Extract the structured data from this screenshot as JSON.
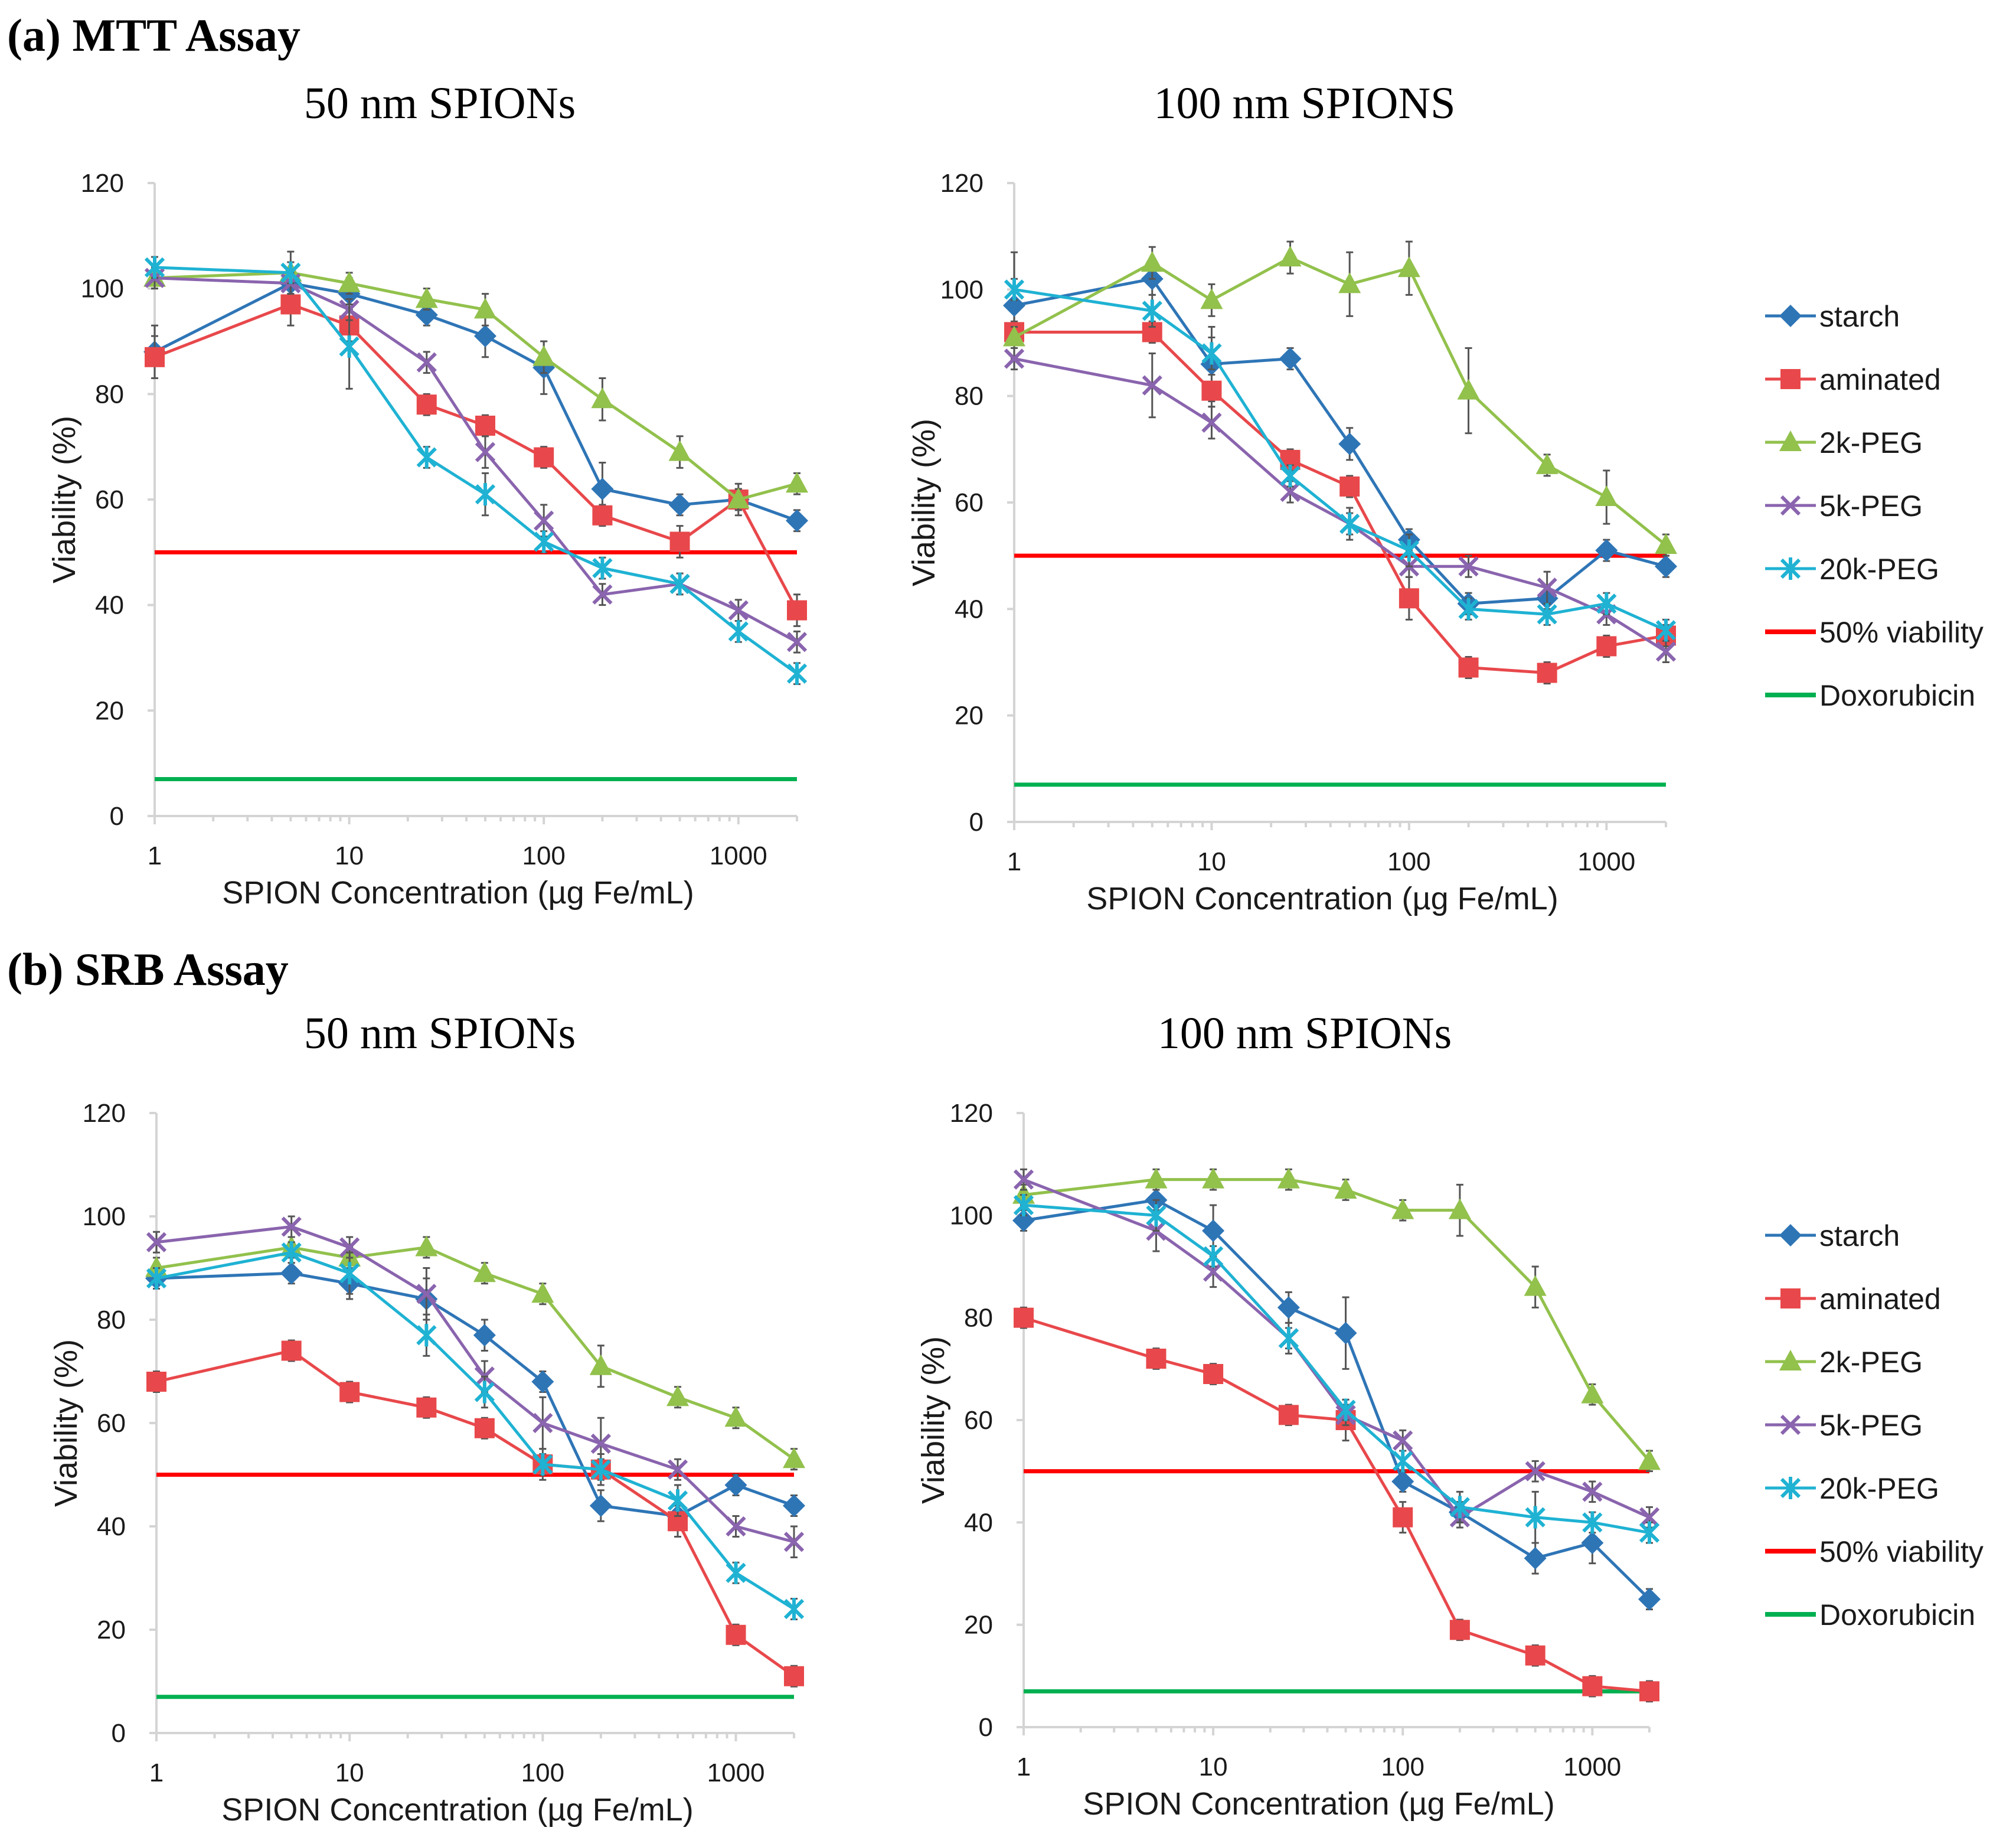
{
  "sections": [
    {
      "label": "(a) MTT Assay"
    },
    {
      "label": "(b) SRB Assay"
    }
  ],
  "colors": {
    "starch": "#2e75b6",
    "aminated": "#e8484b",
    "2k-PEG": "#92c14c",
    "5k-PEG": "#8a64ae",
    "20k-PEG": "#1fb2d3",
    "50% viability": "#ff0000",
    "Doxorubicin": "#00b050",
    "errorbar": "#555555"
  },
  "chart_data": [
    {
      "type": "line",
      "section": 0,
      "title": "50 nm SPIONs",
      "xlabel": "SPION Concentration (µg Fe/mL)",
      "ylabel": "Viability (%)",
      "xscale": "log",
      "xlim": [
        1,
        2000
      ],
      "ylim": [
        0,
        120
      ],
      "xticks": [
        1,
        10,
        100,
        1000
      ],
      "yticks": [
        0,
        20,
        40,
        60,
        80,
        100,
        120
      ],
      "x": [
        1,
        5,
        10,
        25,
        50,
        100,
        200,
        500,
        1000,
        2000
      ],
      "series": [
        {
          "name": "starch",
          "marker": "diamond",
          "values": [
            88,
            101,
            99,
            95,
            91,
            85,
            62,
            59,
            60,
            56
          ],
          "errors": [
            5,
            4,
            3,
            2,
            4,
            5,
            5,
            2,
            2,
            2
          ]
        },
        {
          "name": "aminated",
          "marker": "square",
          "values": [
            87,
            97,
            93,
            78,
            74,
            68,
            57,
            52,
            60,
            39
          ],
          "errors": [
            4,
            4,
            3,
            2,
            2,
            2,
            2,
            3,
            3,
            3
          ]
        },
        {
          "name": "2k-PEG",
          "marker": "triangle",
          "values": [
            102,
            103,
            101,
            98,
            96,
            87,
            79,
            69,
            60,
            63
          ],
          "errors": [
            2,
            4,
            2,
            2,
            3,
            3,
            4,
            3,
            2,
            2
          ]
        },
        {
          "name": "5k-PEG",
          "marker": "x",
          "values": [
            102,
            101,
            96,
            86,
            69,
            56,
            42,
            44,
            39,
            33
          ],
          "errors": [
            2,
            2,
            2,
            2,
            3,
            3,
            2,
            2,
            2,
            2
          ]
        },
        {
          "name": "20k-PEG",
          "marker": "star",
          "values": [
            104,
            103,
            89,
            68,
            61,
            52,
            47,
            44,
            35,
            27
          ],
          "errors": [
            2,
            2,
            8,
            2,
            4,
            2,
            2,
            2,
            2,
            2
          ]
        }
      ],
      "reference_lines": [
        {
          "name": "50% viability",
          "value": 50
        },
        {
          "name": "Doxorubicin",
          "value": 7
        }
      ],
      "legend": null
    },
    {
      "type": "line",
      "section": 0,
      "title": "100 nm SPIONS",
      "xlabel": "SPION Concentration (µg Fe/mL)",
      "ylabel": "Viability (%)",
      "xscale": "log",
      "xlim": [
        1,
        2000
      ],
      "ylim": [
        0,
        120
      ],
      "xticks": [
        1,
        10,
        100,
        1000
      ],
      "yticks": [
        0,
        20,
        40,
        60,
        80,
        100,
        120
      ],
      "x": [
        1,
        5,
        10,
        25,
        50,
        100,
        200,
        500,
        1000,
        2000
      ],
      "series": [
        {
          "name": "starch",
          "marker": "diamond",
          "values": [
            97,
            102,
            86,
            87,
            71,
            53,
            41,
            42,
            51,
            48
          ],
          "errors": [
            10,
            3,
            7,
            2,
            3,
            2,
            2,
            2,
            2,
            2
          ]
        },
        {
          "name": "aminated",
          "marker": "square",
          "values": [
            92,
            92,
            81,
            68,
            63,
            42,
            29,
            28,
            33,
            35
          ],
          "errors": [
            2,
            2,
            3,
            2,
            2,
            4,
            2,
            2,
            2,
            2
          ]
        },
        {
          "name": "2k-PEG",
          "marker": "triangle",
          "values": [
            91,
            105,
            98,
            106,
            101,
            104,
            81,
            67,
            61,
            52
          ],
          "errors": [
            2,
            3,
            3,
            3,
            6,
            5,
            8,
            2,
            5,
            2
          ]
        },
        {
          "name": "5k-PEG",
          "marker": "x",
          "values": [
            87,
            82,
            75,
            62,
            56,
            48,
            48,
            44,
            39,
            32
          ],
          "errors": [
            2,
            6,
            3,
            2,
            2,
            2,
            2,
            3,
            2,
            2
          ]
        },
        {
          "name": "20k-PEG",
          "marker": "star",
          "values": [
            100,
            96,
            88,
            65,
            56,
            51,
            40,
            39,
            41,
            36
          ],
          "errors": [
            2,
            3,
            3,
            2,
            3,
            3,
            2,
            2,
            2,
            2
          ]
        }
      ],
      "reference_lines": [
        {
          "name": "50% viability",
          "value": 50
        },
        {
          "name": "Doxorubicin",
          "value": 7
        }
      ],
      "legend": [
        "starch",
        "aminated",
        "2k-PEG",
        "5k-PEG",
        "20k-PEG",
        "50% viability",
        "Doxorubicin"
      ]
    },
    {
      "type": "line",
      "section": 1,
      "title": "50 nm SPIONs",
      "xlabel": "SPION Concentration (µg Fe/mL)",
      "ylabel": "Viability (%)",
      "xscale": "log",
      "xlim": [
        1,
        2000
      ],
      "ylim": [
        0,
        120
      ],
      "xticks": [
        1,
        10,
        100,
        1000
      ],
      "yticks": [
        0,
        20,
        40,
        60,
        80,
        100,
        120
      ],
      "x": [
        1,
        5,
        10,
        25,
        50,
        100,
        200,
        500,
        1000,
        2000
      ],
      "series": [
        {
          "name": "starch",
          "marker": "diamond",
          "values": [
            88,
            89,
            87,
            84,
            77,
            68,
            44,
            42,
            48,
            44
          ],
          "errors": [
            2,
            2,
            3,
            4,
            3,
            2,
            3,
            2,
            2,
            2
          ]
        },
        {
          "name": "aminated",
          "marker": "square",
          "values": [
            68,
            74,
            66,
            63,
            59,
            52,
            51,
            41,
            19,
            11
          ],
          "errors": [
            2,
            2,
            2,
            2,
            2,
            2,
            2,
            3,
            2,
            2
          ]
        },
        {
          "name": "2k-PEG",
          "marker": "triangle",
          "values": [
            90,
            94,
            92,
            94,
            89,
            85,
            71,
            65,
            61,
            53
          ],
          "errors": [
            2,
            2,
            2,
            2,
            2,
            2,
            4,
            2,
            2,
            2
          ]
        },
        {
          "name": "5k-PEG",
          "marker": "x",
          "values": [
            95,
            98,
            94,
            85,
            69,
            60,
            56,
            51,
            40,
            37
          ],
          "errors": [
            2,
            2,
            2,
            5,
            3,
            5,
            5,
            2,
            2,
            3
          ]
        },
        {
          "name": "20k-PEG",
          "marker": "star",
          "values": [
            88,
            93,
            89,
            77,
            66,
            52,
            51,
            45,
            31,
            24
          ],
          "errors": [
            2,
            2,
            4,
            4,
            3,
            3,
            3,
            3,
            2,
            2
          ]
        }
      ],
      "reference_lines": [
        {
          "name": "50% viability",
          "value": 50
        },
        {
          "name": "Doxorubicin",
          "value": 7
        }
      ],
      "legend": null
    },
    {
      "type": "line",
      "section": 1,
      "title": "100 nm SPIONs",
      "xlabel": "SPION Concentration (µg Fe/mL)",
      "ylabel": "Viability (%)",
      "xscale": "log",
      "xlim": [
        1,
        2000
      ],
      "ylim": [
        0,
        120
      ],
      "xticks": [
        1,
        10,
        100,
        1000
      ],
      "yticks": [
        0,
        20,
        40,
        60,
        80,
        100,
        120
      ],
      "x": [
        1,
        5,
        10,
        25,
        50,
        100,
        200,
        500,
        1000,
        2000
      ],
      "series": [
        {
          "name": "starch",
          "marker": "diamond",
          "values": [
            99,
            103,
            97,
            82,
            77,
            48,
            42,
            33,
            36,
            25
          ],
          "errors": [
            2,
            2,
            5,
            3,
            7,
            2,
            2,
            3,
            4,
            2
          ]
        },
        {
          "name": "aminated",
          "marker": "square",
          "values": [
            80,
            72,
            69,
            61,
            60,
            41,
            19,
            14,
            8,
            7
          ],
          "errors": [
            2,
            2,
            2,
            2,
            4,
            3,
            2,
            2,
            2,
            2
          ]
        },
        {
          "name": "2k-PEG",
          "marker": "triangle",
          "values": [
            104,
            107,
            107,
            107,
            105,
            101,
            101,
            86,
            65,
            52
          ],
          "errors": [
            2,
            2,
            2,
            2,
            2,
            2,
            5,
            4,
            2,
            2
          ]
        },
        {
          "name": "5k-PEG",
          "marker": "x",
          "values": [
            107,
            97,
            89,
            76,
            61,
            56,
            41,
            50,
            46,
            41
          ],
          "errors": [
            2,
            4,
            3,
            3,
            2,
            2,
            2,
            2,
            2,
            2
          ]
        },
        {
          "name": "20k-PEG",
          "marker": "star",
          "values": [
            102,
            100,
            92,
            76,
            62,
            52,
            43,
            41,
            40,
            38
          ],
          "errors": [
            2,
            3,
            2,
            2,
            2,
            2,
            3,
            5,
            2,
            2
          ]
        }
      ],
      "reference_lines": [
        {
          "name": "50% viability",
          "value": 50
        },
        {
          "name": "Doxorubicin",
          "value": 7
        }
      ],
      "legend": [
        "starch",
        "aminated",
        "2k-PEG",
        "5k-PEG",
        "20k-PEG",
        "50% viability",
        "Doxorubicin"
      ]
    }
  ]
}
